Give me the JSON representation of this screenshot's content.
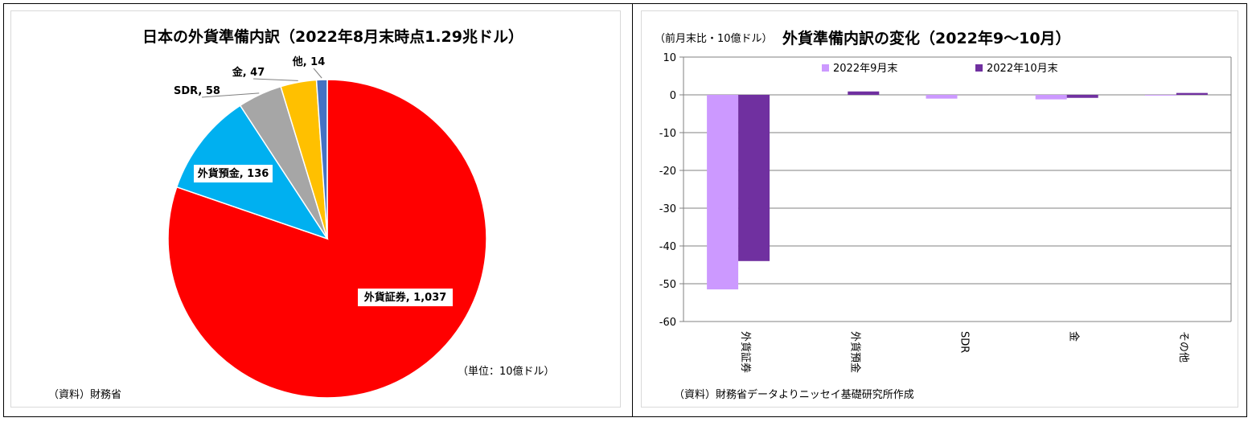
{
  "chart_data": [
    {
      "type": "pie",
      "title": "日本の外貨準備内訳（2022年8月末時点1.29兆ドル）",
      "unit_note": "（単位：10億ドル）",
      "source": "（資料）財務省",
      "slices": [
        {
          "label": "外貨証券",
          "value": 1037,
          "display": "外貨証券, 1,037",
          "color": "#ff0000"
        },
        {
          "label": "外貨預金",
          "value": 136,
          "display": "外貨預金, 136",
          "color": "#00b0f0"
        },
        {
          "label": "SDR",
          "value": 58,
          "display": "SDR, 58",
          "color": "#a6a6a6"
        },
        {
          "label": "金",
          "value": 47,
          "display": "金, 47",
          "color": "#ffc000"
        },
        {
          "label": "他",
          "value": 14,
          "display": "他, 14",
          "color": "#4472c4"
        }
      ]
    },
    {
      "type": "bar",
      "title": "外貨準備内訳の変化（2022年9～10月）",
      "ylabel": "（前月末比・10億ドル）",
      "source": "（資料）財務省データよりニッセイ基礎研究所作成",
      "categories": [
        "外貨証券",
        "外貨預金",
        "SDR",
        "金",
        "その他"
      ],
      "ylim": [
        -60,
        10
      ],
      "yticks": [
        10,
        0,
        -10,
        -20,
        -30,
        -40,
        -50,
        -60
      ],
      "grid": true,
      "legend_position": "top",
      "series": [
        {
          "name": "2022年9月末",
          "color": "#cc99ff",
          "values": [
            -51.5,
            0,
            -1.0,
            -1.2,
            -0.2
          ]
        },
        {
          "name": "2022年10月末",
          "color": "#7030a0",
          "values": [
            -44.0,
            0.9,
            0,
            -0.8,
            0.5
          ]
        }
      ]
    }
  ]
}
